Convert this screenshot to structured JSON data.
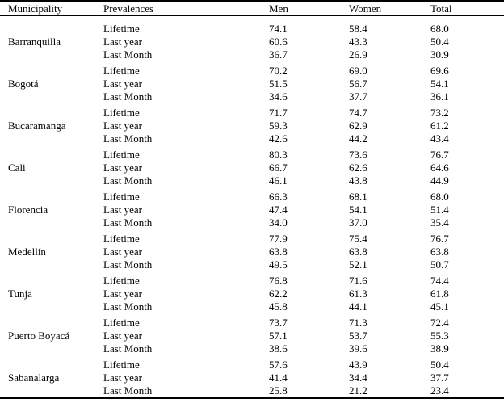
{
  "chart_data": {
    "type": "table",
    "columns": [
      "Municipality",
      "Prevalences",
      "Men",
      "Women",
      "Total"
    ],
    "prevalence_labels": [
      "Lifetime",
      "Last year",
      "Last Month"
    ],
    "groups": [
      {
        "municipality": "Barranquilla",
        "rows": [
          [
            "Lifetime",
            "74.1",
            "58.4",
            "68.0"
          ],
          [
            "Last year",
            "60.6",
            "43.3",
            "50.4"
          ],
          [
            "Last Month",
            "36.7",
            "26.9",
            "30.9"
          ]
        ]
      },
      {
        "municipality": "Bogotá",
        "rows": [
          [
            "Lifetime",
            "70.2",
            "69.0",
            "69.6"
          ],
          [
            "Last year",
            "51.5",
            "56.7",
            "54.1"
          ],
          [
            "Last Month",
            "34.6",
            "37.7",
            "36.1"
          ]
        ]
      },
      {
        "municipality": "Bucaramanga",
        "rows": [
          [
            "Lifetime",
            "71.7",
            "74.7",
            "73.2"
          ],
          [
            "Last year",
            "59.3",
            "62.9",
            "61.2"
          ],
          [
            "Last Month",
            "42.6",
            "44.2",
            "43.4"
          ]
        ]
      },
      {
        "municipality": "Cali",
        "rows": [
          [
            "Lifetime",
            "80.3",
            "73.6",
            "76.7"
          ],
          [
            "Last year",
            "66.7",
            "62.6",
            "64.6"
          ],
          [
            "Last Month",
            "46.1",
            "43.8",
            "44.9"
          ]
        ]
      },
      {
        "municipality": "Florencia",
        "rows": [
          [
            "Lifetime",
            "66.3",
            "68.1",
            "68.0"
          ],
          [
            "Last year",
            "47.4",
            "54.1",
            "51.4"
          ],
          [
            "Last Month",
            "34.0",
            "37.0",
            "35.4"
          ]
        ]
      },
      {
        "municipality": "Medellín",
        "rows": [
          [
            "Lifetime",
            "77.9",
            "75.4",
            "76.7"
          ],
          [
            "Last year",
            "63.8",
            "63.8",
            "63.8"
          ],
          [
            "Last Month",
            "49.5",
            "52.1",
            "50.7"
          ]
        ]
      },
      {
        "municipality": "Tunja",
        "rows": [
          [
            "Lifetime",
            "76.8",
            "71.6",
            "74.4"
          ],
          [
            "Last year",
            "62.2",
            "61.3",
            "61.8"
          ],
          [
            "Last Month",
            "45.8",
            "44.1",
            "45.1"
          ]
        ]
      },
      {
        "municipality": "Puerto Boyacá",
        "rows": [
          [
            "Lifetime",
            "73.7",
            "71.3",
            "72.4"
          ],
          [
            "Last year",
            "57.1",
            "53.7",
            "55.3"
          ],
          [
            "Last Month",
            "38.6",
            "39.6",
            "38.9"
          ]
        ]
      },
      {
        "municipality": "Sabanalarga",
        "rows": [
          [
            "Lifetime",
            "57.6",
            "43.9",
            "50.4"
          ],
          [
            "Last year",
            "41.4",
            "34.4",
            "37.7"
          ],
          [
            "Last Month",
            "25.8",
            "21.2",
            "23.4"
          ]
        ]
      }
    ]
  }
}
